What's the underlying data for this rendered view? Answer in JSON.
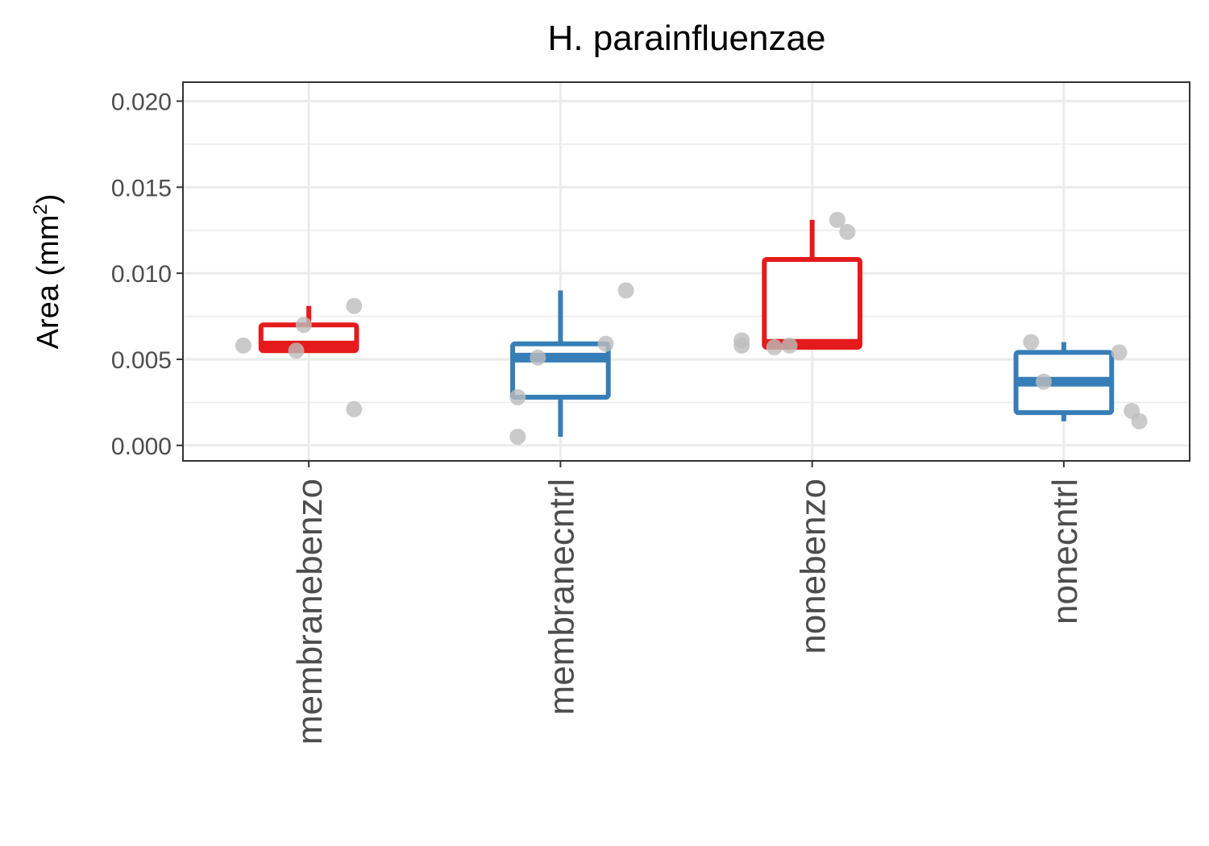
{
  "chart_data": {
    "type": "box",
    "title": "H. parainfluenzae",
    "ylabel": "Area (mm",
    "ylabel_sup": "2",
    "ylabel_close": ")",
    "xlabel": "",
    "ylim": [
      -0.0009,
      0.0211
    ],
    "yticks": [
      0.0,
      0.005,
      0.01,
      0.015,
      0.02
    ],
    "ytick_labels": [
      "0.000",
      "0.005",
      "0.010",
      "0.015",
      "0.020"
    ],
    "grid": true,
    "categories": [
      "membranebenzo",
      "membranecntrl",
      "nonebenzo",
      "nonecntrl"
    ],
    "colors": {
      "benzo": "#e41a1c",
      "cntrl": "#377eb8",
      "points": "#bdbdbd",
      "grid": "#ebebeb",
      "panel_border": "#333333"
    },
    "boxes": [
      {
        "category": "membranebenzo",
        "group": "benzo",
        "q1": 0.0055,
        "median": 0.0058,
        "q3": 0.007,
        "whisker_low": 0.0055,
        "whisker_high": 0.0081
      },
      {
        "category": "membranecntrl",
        "group": "cntrl",
        "q1": 0.0028,
        "median": 0.0051,
        "q3": 0.0059,
        "whisker_low": 0.0005,
        "whisker_high": 0.009
      },
      {
        "category": "nonebenzo",
        "group": "benzo",
        "q1": 0.0057,
        "median": 0.0059,
        "q3": 0.0108,
        "whisker_low": 0.0057,
        "whisker_high": 0.0131
      },
      {
        "category": "nonecntrl",
        "group": "cntrl",
        "q1": 0.0019,
        "median": 0.0037,
        "q3": 0.0054,
        "whisker_low": 0.0014,
        "whisker_high": 0.006
      }
    ],
    "points": [
      {
        "category": "membranebenzo",
        "jitter": -0.26,
        "y": 0.0058
      },
      {
        "category": "membranebenzo",
        "jitter": -0.05,
        "y": 0.0055
      },
      {
        "category": "membranebenzo",
        "jitter": -0.02,
        "y": 0.007
      },
      {
        "category": "membranebenzo",
        "jitter": 0.18,
        "y": 0.0081
      },
      {
        "category": "membranebenzo",
        "jitter": 0.18,
        "y": 0.0021
      },
      {
        "category": "membranecntrl",
        "jitter": -0.17,
        "y": 0.0005
      },
      {
        "category": "membranecntrl",
        "jitter": -0.17,
        "y": 0.0028
      },
      {
        "category": "membranecntrl",
        "jitter": -0.09,
        "y": 0.0051
      },
      {
        "category": "membranecntrl",
        "jitter": 0.18,
        "y": 0.0059
      },
      {
        "category": "membranecntrl",
        "jitter": 0.26,
        "y": 0.009
      },
      {
        "category": "nonebenzo",
        "jitter": -0.28,
        "y": 0.0061
      },
      {
        "category": "nonebenzo",
        "jitter": -0.28,
        "y": 0.0058
      },
      {
        "category": "nonebenzo",
        "jitter": -0.15,
        "y": 0.0057
      },
      {
        "category": "nonebenzo",
        "jitter": -0.09,
        "y": 0.0058
      },
      {
        "category": "nonebenzo",
        "jitter": 0.1,
        "y": 0.0131
      },
      {
        "category": "nonebenzo",
        "jitter": 0.14,
        "y": 0.0124
      },
      {
        "category": "nonecntrl",
        "jitter": -0.13,
        "y": 0.006
      },
      {
        "category": "nonecntrl",
        "jitter": -0.08,
        "y": 0.0037
      },
      {
        "category": "nonecntrl",
        "jitter": 0.22,
        "y": 0.0054
      },
      {
        "category": "nonecntrl",
        "jitter": 0.27,
        "y": 0.002
      },
      {
        "category": "nonecntrl",
        "jitter": 0.3,
        "y": 0.0014
      }
    ]
  }
}
